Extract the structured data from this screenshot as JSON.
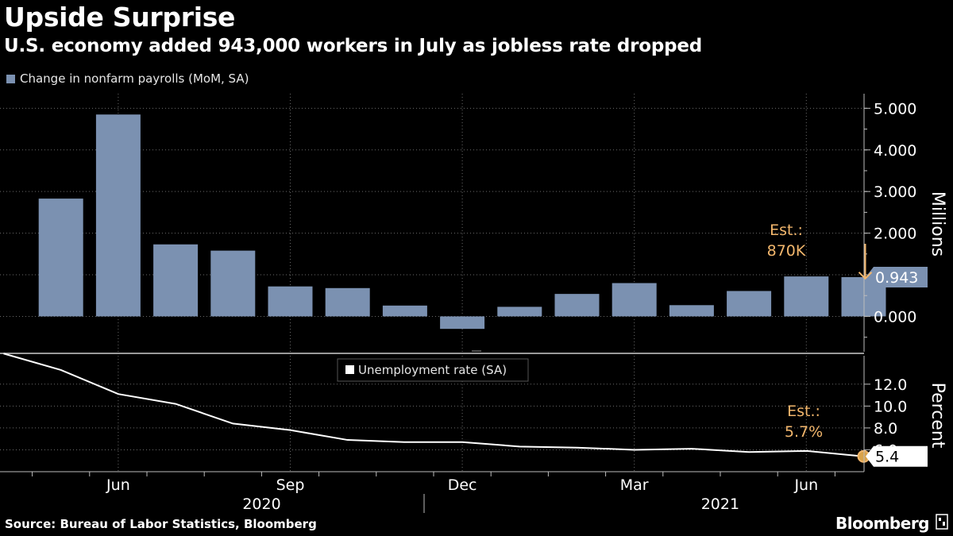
{
  "title": "Upside Surprise",
  "subtitle": "U.S. economy added 943,000 workers in July as jobless rate dropped",
  "source": "Source: Bureau of Labor Statistics, Bloomberg",
  "brand": "Bloomberg",
  "colors": {
    "background": "#000000",
    "bar": "#7b91b1",
    "line": "#ffffff",
    "annotation": "#f2b66c",
    "grid": "#6b6b6b"
  },
  "chart_data": [
    {
      "type": "bar",
      "series_label": "Change in nonfarm payrolls (MoM, SA)",
      "ylabel": "Millions",
      "ylim": [
        -0.85,
        5.35
      ],
      "ticks": [
        "5.000",
        "4.000",
        "3.000",
        "2.000",
        "1.000",
        "0.000"
      ],
      "tick_values": [
        5,
        4,
        3,
        2,
        1,
        0
      ],
      "categories": [
        "2020-05",
        "2020-06",
        "2020-07",
        "2020-08",
        "2020-09",
        "2020-10",
        "2020-11",
        "2020-12",
        "2021-01",
        "2021-02",
        "2021-03",
        "2021-04",
        "2021-05",
        "2021-06",
        "2021-07"
      ],
      "values": [
        2.83,
        4.85,
        1.73,
        1.58,
        0.72,
        0.68,
        0.26,
        -0.3,
        0.23,
        0.54,
        0.8,
        0.27,
        0.61,
        0.96,
        0.943
      ],
      "last_value_label": "0.943",
      "annotation": {
        "line1": "Est.:",
        "line2": "870K",
        "value": 0.87
      }
    },
    {
      "type": "line",
      "series_label": "Unemployment rate (SA)",
      "ylabel": "Percent",
      "ylim": [
        4.0,
        14.6
      ],
      "ticks": [
        "12.0",
        "10.0",
        "8.0",
        "6.0"
      ],
      "tick_values": [
        12,
        10,
        8,
        6
      ],
      "categories": [
        "2020-04",
        "2020-05",
        "2020-06",
        "2020-07",
        "2020-08",
        "2020-09",
        "2020-10",
        "2020-11",
        "2020-12",
        "2021-01",
        "2021-02",
        "2021-03",
        "2021-04",
        "2021-05",
        "2021-06",
        "2021-07"
      ],
      "values": [
        14.8,
        13.3,
        11.1,
        10.2,
        8.4,
        7.8,
        6.9,
        6.7,
        6.7,
        6.3,
        6.2,
        6.0,
        6.1,
        5.8,
        5.9,
        5.4
      ],
      "last_value_label": "5.4",
      "annotation": {
        "line1": "Est.:",
        "line2": "5.7%",
        "value": 5.7
      }
    }
  ],
  "x_axis": {
    "month_labels": [
      {
        "month": "2020-06",
        "label": "Jun"
      },
      {
        "month": "2020-09",
        "label": "Sep"
      },
      {
        "month": "2020-12",
        "label": "Dec"
      },
      {
        "month": "2021-03",
        "label": "Mar"
      },
      {
        "month": "2021-06",
        "label": "Jun"
      }
    ],
    "year_labels": [
      {
        "year": "2020",
        "center_month": "2020-09"
      },
      {
        "year": "2021",
        "center_month": "2021-04"
      }
    ],
    "year_divider_after": "2020-12"
  }
}
